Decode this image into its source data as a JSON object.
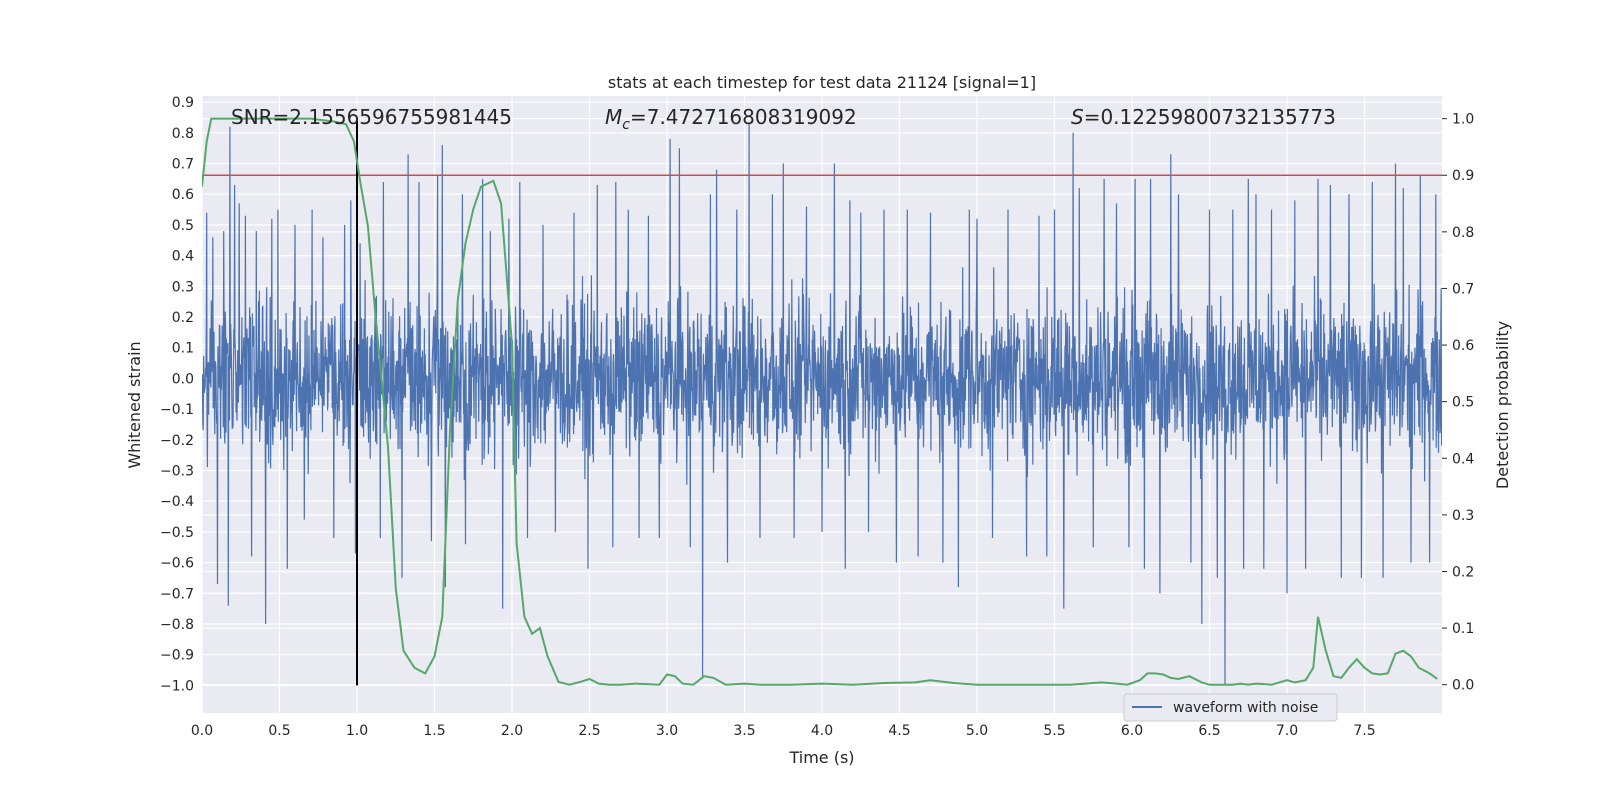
{
  "chart_data": {
    "type": "line",
    "title": "stats at each timestep for test data 21124 [signal=1]",
    "xlabel": "Time (s)",
    "ylabel": "Whitened strain",
    "y2label": "Detection probability",
    "xlim": [
      0.0,
      8.0
    ],
    "ylim": [
      -1.09,
      0.92
    ],
    "y2lim": [
      -0.05,
      1.04
    ],
    "x_ticks": [
      "0.0",
      "0.5",
      "1.0",
      "1.5",
      "2.0",
      "2.5",
      "3.0",
      "3.5",
      "4.0",
      "4.5",
      "5.0",
      "5.5",
      "6.0",
      "6.5",
      "7.0",
      "7.5"
    ],
    "y_ticks": [
      "0.9",
      "0.8",
      "0.7",
      "0.6",
      "0.5",
      "0.4",
      "0.3",
      "0.2",
      "0.1",
      "0.0",
      "-0.1",
      "-0.2",
      "-0.3",
      "-0.4",
      "-0.5",
      "-0.6",
      "-0.7",
      "-0.8",
      "-0.9",
      "-1.0"
    ],
    "y2_ticks": [
      "1.0",
      "0.9",
      "0.8",
      "0.7",
      "0.6",
      "0.5",
      "0.4",
      "0.3",
      "0.2",
      "0.1",
      "0.0"
    ],
    "grid": true,
    "legend_position": "lower-right",
    "annotations": {
      "snr": "SNR=2.1556596755981445",
      "mc_symbol": "M",
      "mc_subscript": "c",
      "mc_value": "=7.472716808319092",
      "s_symbol": "S",
      "s_value": "=0.12259800732135773"
    },
    "threshold": {
      "value": 0.9,
      "axis": "y2",
      "color": "#C44E52"
    },
    "marker_line": {
      "x": 1.0,
      "ymin": -1.0,
      "ymax": 0.84,
      "color": "#000000"
    },
    "series": [
      {
        "name": "waveform with noise",
        "axis": "y",
        "color": "#4C72B0",
        "amplitude_envelope": 0.3,
        "peaks": [
          [
            0.03,
            0.54
          ],
          [
            0.07,
            0.46
          ],
          [
            0.1,
            -0.67
          ],
          [
            0.14,
            0.48
          ],
          [
            0.17,
            -0.74
          ],
          [
            0.18,
            0.82
          ],
          [
            0.21,
            0.63
          ],
          [
            0.24,
            0.57
          ],
          [
            0.28,
            0.53
          ],
          [
            0.32,
            -0.58
          ],
          [
            0.35,
            0.48
          ],
          [
            0.41,
            -0.8
          ],
          [
            0.45,
            0.52
          ],
          [
            0.49,
            0.55
          ],
          [
            0.55,
            -0.62
          ],
          [
            0.6,
            0.5
          ],
          [
            0.66,
            -0.46
          ],
          [
            0.71,
            0.55
          ],
          [
            0.78,
            0.46
          ],
          [
            0.85,
            -0.52
          ],
          [
            0.92,
            0.5
          ],
          [
            0.96,
            0.58
          ],
          [
            0.99,
            -0.57
          ],
          [
            1.02,
            0.44
          ],
          [
            1.15,
            -0.52
          ],
          [
            1.17,
            0.64
          ],
          [
            1.29,
            -0.65
          ],
          [
            1.33,
            0.73
          ],
          [
            1.4,
            0.64
          ],
          [
            1.48,
            -0.53
          ],
          [
            1.52,
            0.66
          ],
          [
            1.55,
            0.76
          ],
          [
            1.57,
            -0.68
          ],
          [
            1.68,
            0.6
          ],
          [
            1.7,
            -0.54
          ],
          [
            1.81,
            0.65
          ],
          [
            1.86,
            0.48
          ],
          [
            1.94,
            -0.75
          ],
          [
            1.98,
            0.52
          ],
          [
            2.05,
            0.64
          ],
          [
            2.1,
            -0.52
          ],
          [
            2.2,
            0.5
          ],
          [
            2.28,
            -0.5
          ],
          [
            2.4,
            0.54
          ],
          [
            2.49,
            -0.62
          ],
          [
            2.55,
            0.63
          ],
          [
            2.65,
            -0.55
          ],
          [
            2.67,
            0.64
          ],
          [
            2.75,
            0.55
          ],
          [
            2.82,
            -0.52
          ],
          [
            2.88,
            0.53
          ],
          [
            2.95,
            -0.52
          ],
          [
            3.02,
            0.78
          ],
          [
            3.08,
            0.75
          ],
          [
            3.15,
            -0.55
          ],
          [
            3.23,
            -0.97
          ],
          [
            3.28,
            0.6
          ],
          [
            3.32,
            0.68
          ],
          [
            3.39,
            -0.6
          ],
          [
            3.45,
            0.55
          ],
          [
            3.53,
            0.83
          ],
          [
            3.6,
            -0.52
          ],
          [
            3.68,
            0.6
          ],
          [
            3.75,
            0.7
          ],
          [
            3.82,
            -0.52
          ],
          [
            3.9,
            0.56
          ],
          [
            4.0,
            -0.5
          ],
          [
            4.08,
            0.7
          ],
          [
            4.15,
            -0.62
          ],
          [
            4.18,
            0.58
          ],
          [
            4.25,
            0.54
          ],
          [
            4.3,
            -0.5
          ],
          [
            4.4,
            0.55
          ],
          [
            4.48,
            -0.6
          ],
          [
            4.55,
            0.55
          ],
          [
            4.62,
            -0.58
          ],
          [
            4.7,
            0.54
          ],
          [
            4.78,
            -0.6
          ],
          [
            4.88,
            -0.68
          ],
          [
            4.95,
            0.55
          ],
          [
            5.0,
            0.52
          ],
          [
            5.1,
            -0.52
          ],
          [
            5.2,
            0.55
          ],
          [
            5.32,
            -0.58
          ],
          [
            5.4,
            0.53
          ],
          [
            5.45,
            -0.58
          ],
          [
            5.5,
            0.55
          ],
          [
            5.56,
            -0.75
          ],
          [
            5.62,
            0.8
          ],
          [
            5.66,
            0.62
          ],
          [
            5.75,
            -0.55
          ],
          [
            5.82,
            0.65
          ],
          [
            5.9,
            0.57
          ],
          [
            5.98,
            -0.55
          ],
          [
            6.02,
            0.65
          ],
          [
            6.08,
            -0.62
          ],
          [
            6.12,
            0.65
          ],
          [
            6.18,
            -0.7
          ],
          [
            6.25,
            0.73
          ],
          [
            6.3,
            0.6
          ],
          [
            6.38,
            -0.6
          ],
          [
            6.45,
            -0.8
          ],
          [
            6.5,
            0.55
          ],
          [
            6.55,
            -0.65
          ],
          [
            6.6,
            -1.0
          ],
          [
            6.65,
            0.55
          ],
          [
            6.72,
            -0.62
          ],
          [
            6.75,
            0.65
          ],
          [
            6.8,
            0.6
          ],
          [
            6.85,
            -0.62
          ],
          [
            6.9,
            0.55
          ],
          [
            7.0,
            -0.7
          ],
          [
            7.05,
            0.58
          ],
          [
            7.12,
            -0.62
          ],
          [
            7.2,
            0.65
          ],
          [
            7.28,
            0.63
          ],
          [
            7.35,
            -0.65
          ],
          [
            7.4,
            0.6
          ],
          [
            7.48,
            -0.65
          ],
          [
            7.55,
            0.64
          ],
          [
            7.62,
            -0.65
          ],
          [
            7.7,
            0.7
          ],
          [
            7.75,
            0.62
          ],
          [
            7.8,
            -0.6
          ],
          [
            7.86,
            0.66
          ],
          [
            7.92,
            -0.6
          ],
          [
            7.96,
            0.6
          ]
        ]
      },
      {
        "name": "",
        "axis": "y2",
        "color": "#55A868",
        "x": [
          0.0,
          0.03,
          0.06,
          0.1,
          0.2,
          0.3,
          0.5,
          0.7,
          0.85,
          0.93,
          0.98,
          1.02,
          1.07,
          1.12,
          1.2,
          1.25,
          1.3,
          1.37,
          1.44,
          1.5,
          1.55,
          1.6,
          1.65,
          1.7,
          1.75,
          1.8,
          1.88,
          1.93,
          2.0,
          2.03,
          2.08,
          2.13,
          2.18,
          2.23,
          2.3,
          2.37,
          2.44,
          2.5,
          2.56,
          2.63,
          2.7,
          2.8,
          2.95,
          3.0,
          3.05,
          3.1,
          3.17,
          3.24,
          3.3,
          3.38,
          3.5,
          3.6,
          3.8,
          4.0,
          4.2,
          4.4,
          4.6,
          4.7,
          4.85,
          5.0,
          5.2,
          5.4,
          5.6,
          5.7,
          5.8,
          5.9,
          5.97,
          6.05,
          6.1,
          6.15,
          6.2,
          6.25,
          6.3,
          6.37,
          6.45,
          6.5,
          6.55,
          6.6,
          6.65,
          6.7,
          6.75,
          6.8,
          6.9,
          7.0,
          7.05,
          7.12,
          7.17,
          7.2,
          7.25,
          7.3,
          7.35,
          7.4,
          7.45,
          7.5,
          7.55,
          7.6,
          7.65,
          7.7,
          7.75,
          7.8,
          7.85,
          7.92,
          7.97
        ],
        "y": [
          0.88,
          0.96,
          1.0,
          1.0,
          1.0,
          1.0,
          1.0,
          1.0,
          0.995,
          0.99,
          0.96,
          0.89,
          0.81,
          0.65,
          0.42,
          0.17,
          0.06,
          0.03,
          0.02,
          0.05,
          0.12,
          0.45,
          0.68,
          0.78,
          0.84,
          0.88,
          0.89,
          0.85,
          0.6,
          0.25,
          0.12,
          0.09,
          0.1,
          0.05,
          0.005,
          0.0,
          0.005,
          0.01,
          0.002,
          0.0,
          0.0,
          0.002,
          0.0,
          0.018,
          0.015,
          0.002,
          0.0,
          0.015,
          0.012,
          0.0,
          0.002,
          0.0,
          0.0,
          0.002,
          0.0,
          0.003,
          0.004,
          0.008,
          0.003,
          0.0,
          0.0,
          0.0,
          0.0,
          0.002,
          0.004,
          0.002,
          0.0,
          0.008,
          0.02,
          0.02,
          0.018,
          0.012,
          0.01,
          0.015,
          0.004,
          0.0,
          0.0,
          0.0,
          0.0,
          0.002,
          0.0,
          0.002,
          0.0,
          0.008,
          0.004,
          0.008,
          0.03,
          0.12,
          0.06,
          0.015,
          0.012,
          0.03,
          0.045,
          0.03,
          0.02,
          0.018,
          0.02,
          0.055,
          0.06,
          0.05,
          0.03,
          0.02,
          0.01
        ]
      }
    ]
  }
}
